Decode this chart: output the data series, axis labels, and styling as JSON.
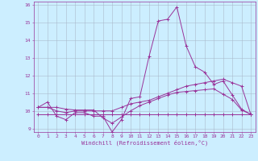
{
  "background_color": "#cceeff",
  "grid_color": "#aabbcc",
  "line_color": "#993399",
  "marker_color": "#993399",
  "xlabel": "Windchill (Refroidissement éolien,°C)",
  "xlim": [
    -0.5,
    23.5
  ],
  "ylim": [
    8.8,
    16.2
  ],
  "yticks": [
    9,
    10,
    11,
    12,
    13,
    14,
    15,
    16
  ],
  "xticks": [
    0,
    1,
    2,
    3,
    4,
    5,
    6,
    7,
    8,
    9,
    10,
    11,
    12,
    13,
    14,
    15,
    16,
    17,
    18,
    19,
    20,
    21,
    22,
    23
  ],
  "series": [
    [
      10.2,
      10.5,
      9.7,
      9.5,
      9.9,
      9.9,
      9.7,
      9.7,
      8.8,
      9.5,
      10.7,
      10.8,
      13.1,
      15.1,
      15.2,
      15.9,
      13.7,
      12.5,
      12.2,
      11.5,
      11.7,
      10.9,
      10.1,
      9.8
    ],
    [
      10.2,
      10.2,
      10.0,
      9.9,
      10.0,
      10.0,
      10.0,
      10.0,
      10.0,
      10.2,
      10.4,
      10.5,
      10.6,
      10.8,
      11.0,
      11.2,
      11.4,
      11.5,
      11.6,
      11.7,
      11.8,
      11.6,
      11.4,
      9.8
    ],
    [
      9.8,
      9.8,
      9.8,
      9.8,
      9.8,
      9.8,
      9.8,
      9.8,
      9.8,
      9.8,
      9.8,
      9.8,
      9.8,
      9.8,
      9.8,
      9.8,
      9.8,
      9.8,
      9.8,
      9.8,
      9.8,
      9.8,
      9.8,
      9.8
    ],
    [
      10.2,
      10.2,
      10.2,
      10.1,
      10.05,
      10.05,
      10.05,
      9.6,
      9.3,
      9.65,
      10.0,
      10.3,
      10.5,
      10.7,
      10.9,
      11.05,
      11.1,
      11.15,
      11.2,
      11.25,
      10.95,
      10.65,
      10.05,
      9.8
    ]
  ],
  "font_color": "#993399",
  "tick_color": "#993399",
  "axis_color": "#993399",
  "tick_fontsize": 4.5,
  "xlabel_fontsize": 5.0,
  "linewidth": 0.7,
  "markersize": 2.5
}
